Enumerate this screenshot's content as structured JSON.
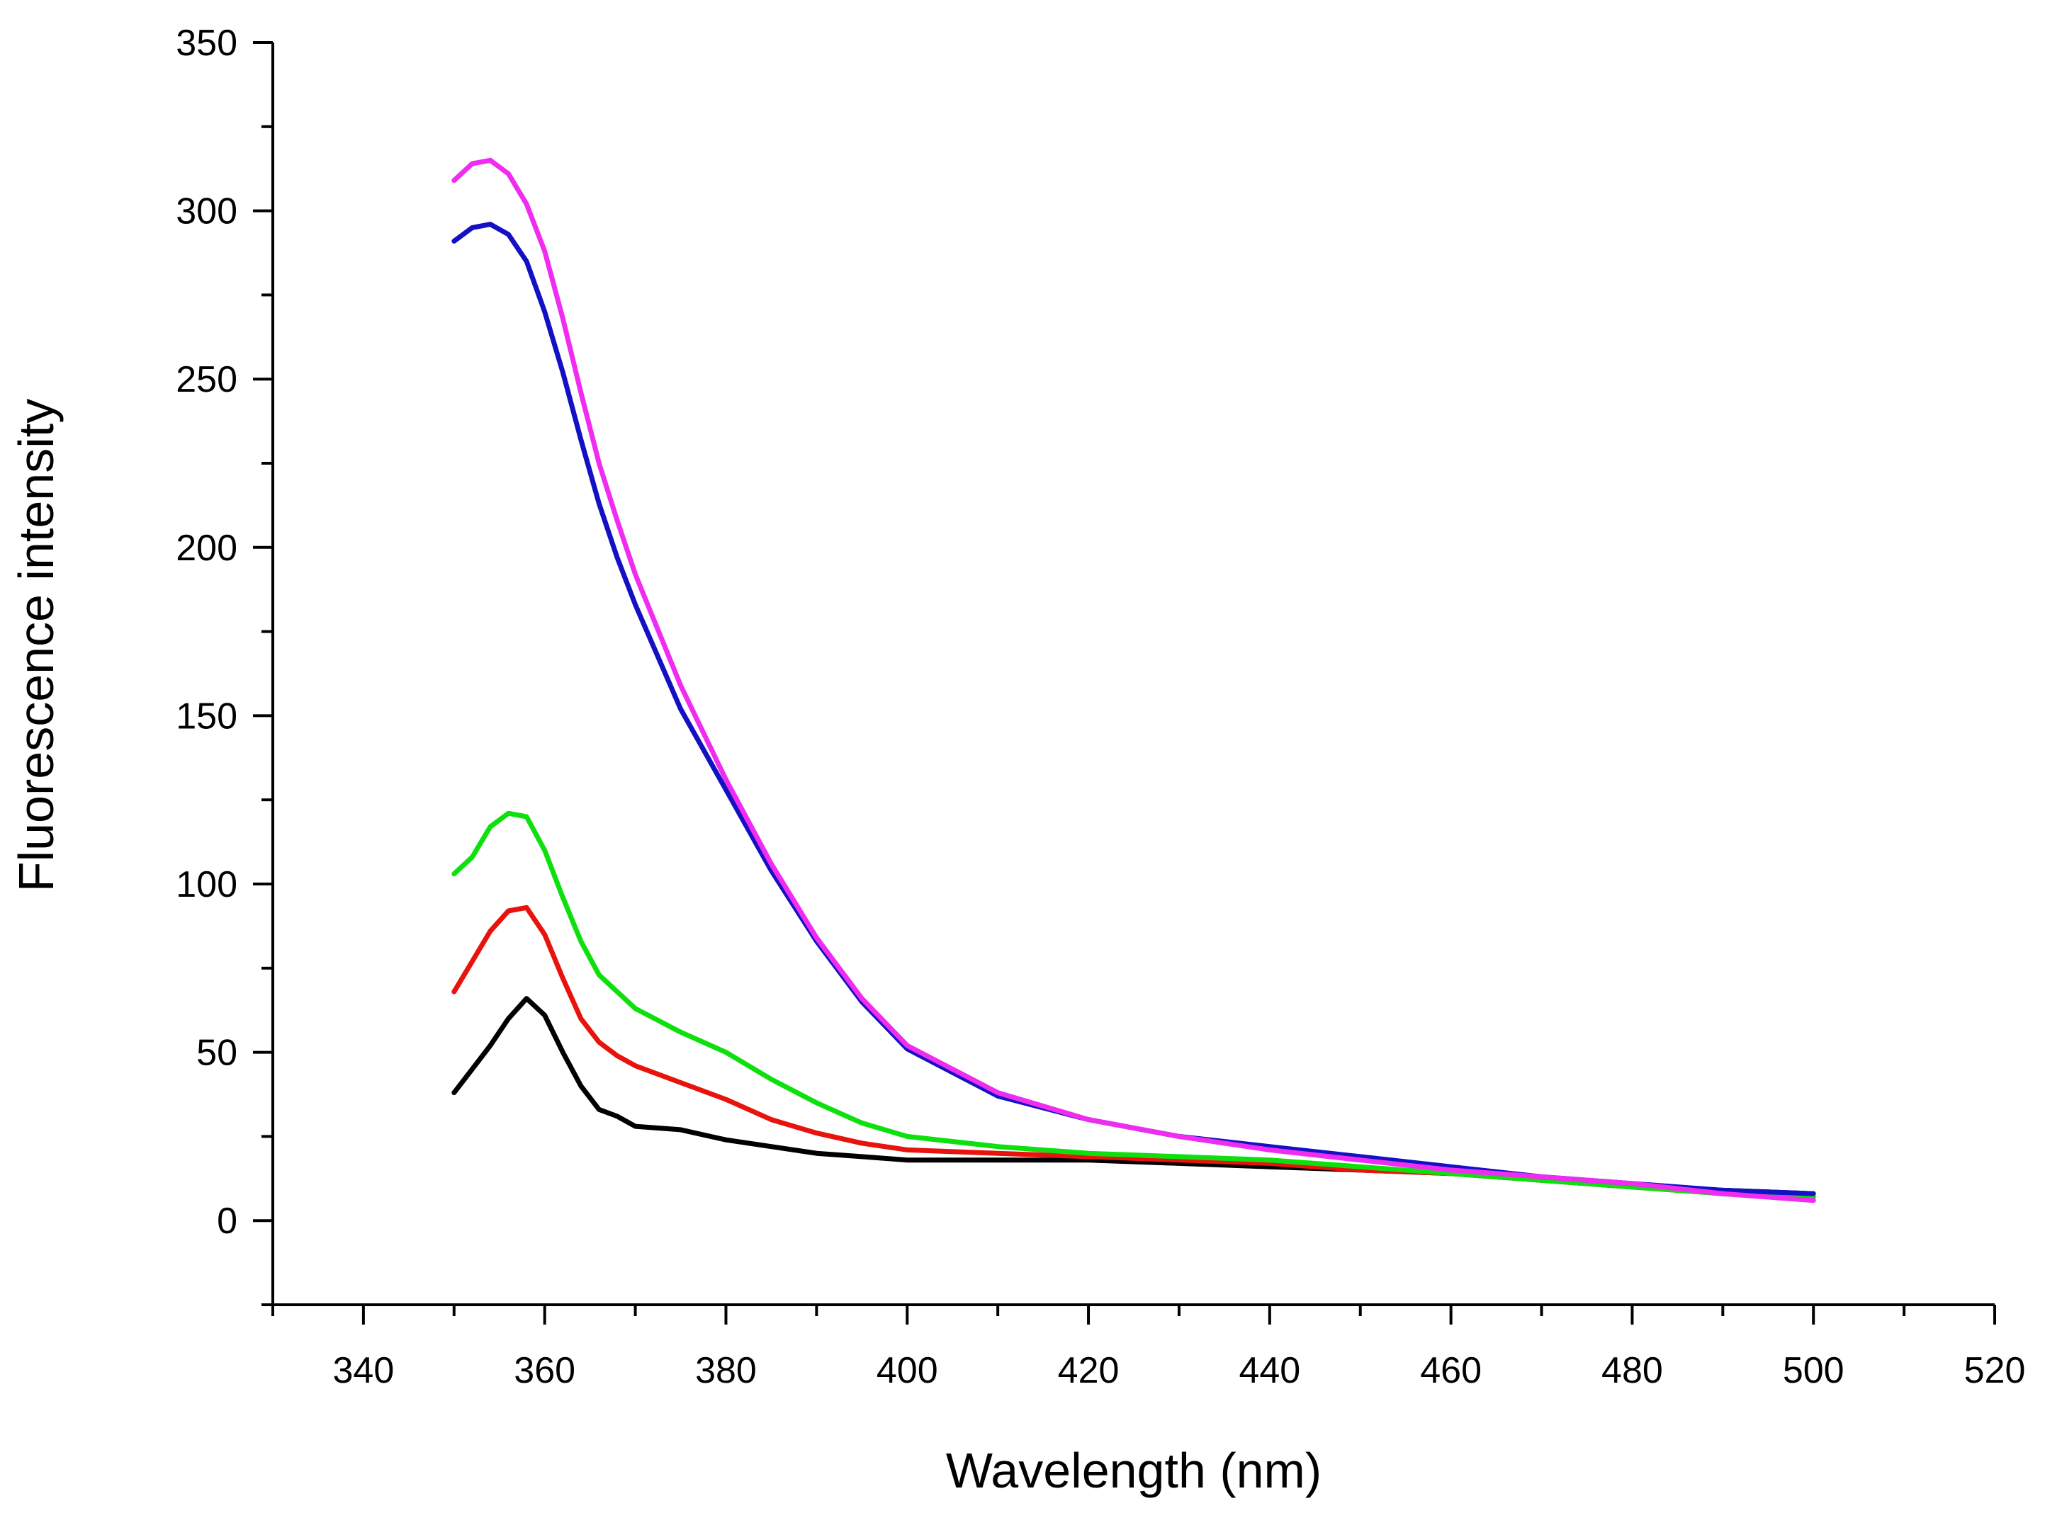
{
  "chart_data": {
    "type": "line",
    "title": "",
    "xlabel": "Wavelength (nm)",
    "ylabel": "Fluorescence intensity",
    "xlim": [
      330,
      520
    ],
    "ylim": [
      -25,
      350
    ],
    "x_ticks": [
      340,
      360,
      380,
      400,
      420,
      440,
      460,
      480,
      500,
      520
    ],
    "y_ticks": [
      0,
      50,
      100,
      150,
      200,
      250,
      300,
      350
    ],
    "x_tick_labels": [
      "340",
      "360",
      "380",
      "400",
      "420",
      "440",
      "460",
      "480",
      "500",
      "520"
    ],
    "y_tick_labels": [
      "0",
      "50",
      "100",
      "150",
      "200",
      "250",
      "300",
      "350"
    ],
    "grid": false,
    "series": [
      {
        "name": "black",
        "color": "#000000",
        "x": [
          350,
          352,
          354,
          356,
          358,
          360,
          362,
          364,
          366,
          368,
          370,
          375,
          380,
          385,
          390,
          395,
          400,
          410,
          420,
          430,
          440,
          450,
          460,
          470,
          480,
          490,
          500
        ],
        "y": [
          38,
          45,
          52,
          60,
          66,
          61,
          50,
          40,
          33,
          31,
          28,
          27,
          24,
          22,
          20,
          19,
          18,
          18,
          18,
          17,
          16,
          15,
          14,
          12,
          10,
          9,
          8
        ]
      },
      {
        "name": "red",
        "color": "#e8130d",
        "x": [
          350,
          352,
          354,
          356,
          358,
          360,
          362,
          364,
          366,
          368,
          370,
          375,
          380,
          385,
          390,
          395,
          400,
          410,
          420,
          430,
          440,
          450,
          460,
          470,
          480,
          490,
          500
        ],
        "y": [
          68,
          77,
          86,
          92,
          93,
          85,
          72,
          60,
          53,
          49,
          46,
          41,
          36,
          30,
          26,
          23,
          21,
          20,
          19,
          18,
          17,
          15,
          14,
          12,
          10,
          8,
          7
        ]
      },
      {
        "name": "green",
        "color": "#0ee00e",
        "x": [
          350,
          352,
          354,
          356,
          358,
          360,
          362,
          364,
          366,
          368,
          370,
          375,
          380,
          385,
          390,
          395,
          400,
          410,
          420,
          430,
          440,
          450,
          460,
          470,
          480,
          490,
          500
        ],
        "y": [
          103,
          108,
          117,
          121,
          120,
          110,
          96,
          83,
          73,
          68,
          63,
          56,
          50,
          42,
          35,
          29,
          25,
          22,
          20,
          19,
          18,
          16,
          14,
          12,
          10,
          8,
          7
        ]
      },
      {
        "name": "blue",
        "color": "#1410c4",
        "x": [
          350,
          352,
          354,
          356,
          358,
          360,
          362,
          364,
          366,
          368,
          370,
          375,
          380,
          385,
          390,
          395,
          400,
          410,
          420,
          430,
          440,
          450,
          460,
          470,
          480,
          490,
          500
        ],
        "y": [
          291,
          295,
          296,
          293,
          285,
          270,
          252,
          232,
          213,
          197,
          183,
          152,
          128,
          104,
          83,
          65,
          51,
          37,
          30,
          25,
          22,
          19,
          16,
          13,
          11,
          9,
          8
        ]
      },
      {
        "name": "magenta",
        "color": "#f02cf0",
        "x": [
          350,
          352,
          354,
          356,
          358,
          360,
          362,
          364,
          366,
          368,
          370,
          375,
          380,
          385,
          390,
          395,
          400,
          410,
          420,
          430,
          440,
          450,
          460,
          470,
          480,
          490,
          500
        ],
        "y": [
          309,
          314,
          315,
          311,
          302,
          288,
          268,
          246,
          225,
          208,
          192,
          159,
          131,
          106,
          84,
          66,
          52,
          38,
          30,
          25,
          21,
          18,
          15,
          13,
          11,
          8,
          6
        ]
      }
    ]
  }
}
